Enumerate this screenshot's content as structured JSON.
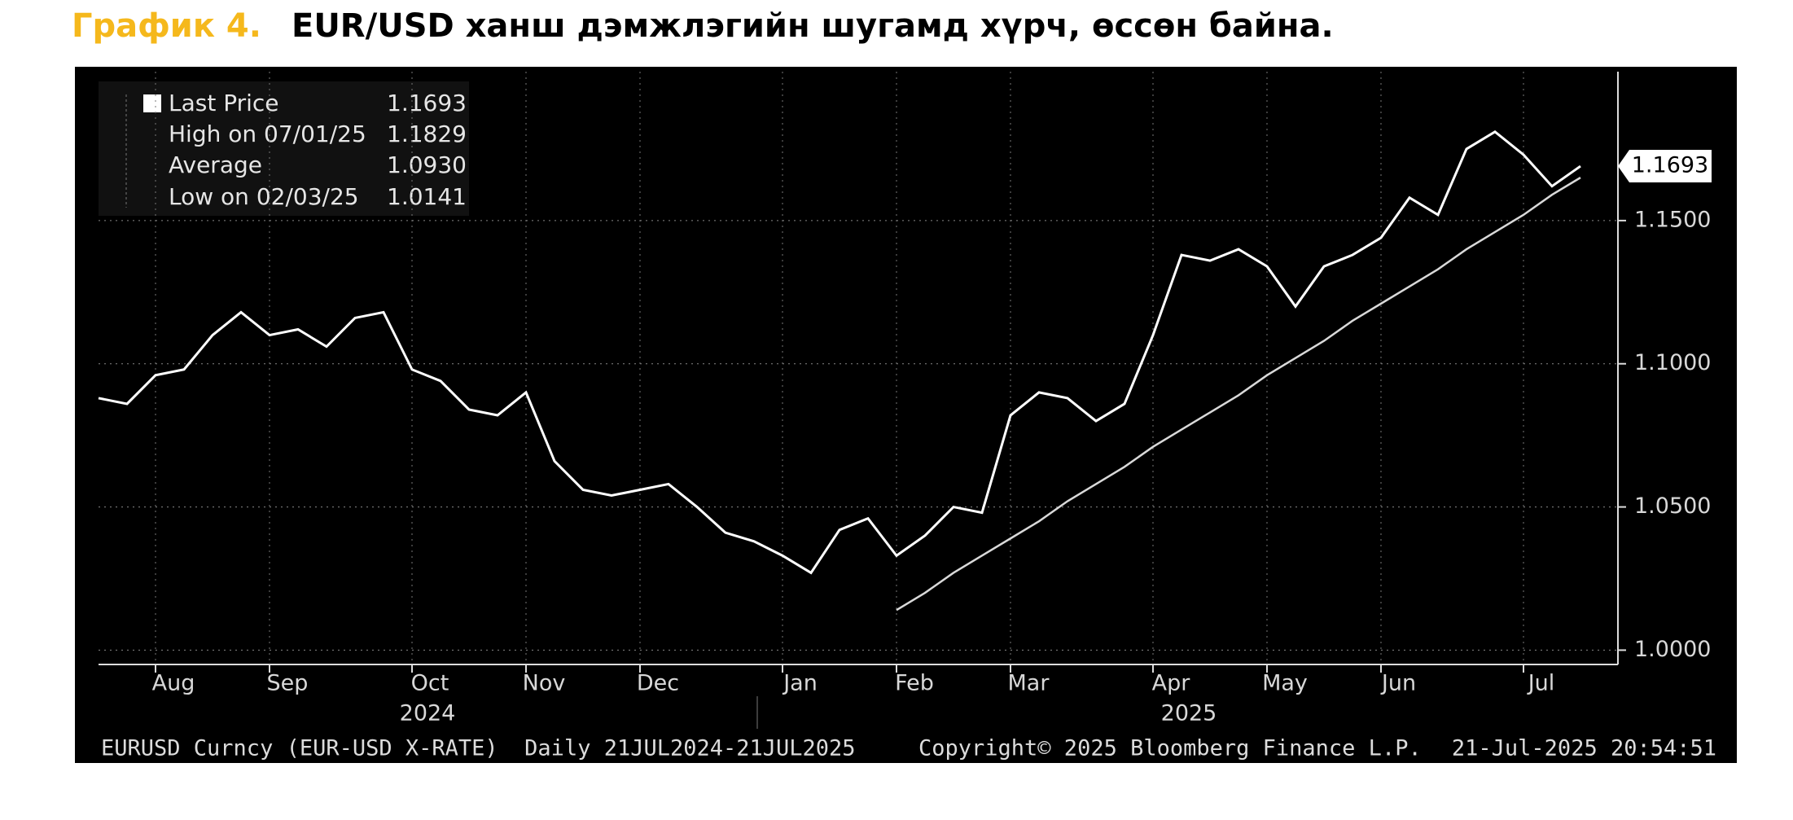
{
  "title_prefix": "График 4.",
  "title": "EUR/USD ханш дэмжлэгийн шугамд хүрч, өссөн байна.",
  "chart_data": {
    "type": "line",
    "categories": [
      null,
      null,
      "Aug",
      null,
      null,
      null,
      "Sep",
      null,
      null,
      null,
      null,
      "Oct",
      null,
      null,
      null,
      "Nov",
      null,
      null,
      null,
      "Dec",
      null,
      null,
      null,
      null,
      "Jan",
      null,
      null,
      null,
      "Feb",
      null,
      null,
      null,
      "Mar",
      null,
      null,
      null,
      null,
      "Apr",
      null,
      null,
      null,
      "May",
      null,
      null,
      null,
      "Jun",
      null,
      null,
      null,
      null,
      "Jul",
      null,
      null
    ],
    "series": [
      {
        "name": "Last Price",
        "color": "#ffffff",
        "values": [
          1.088,
          1.086,
          1.096,
          1.098,
          1.11,
          1.118,
          1.11,
          1.112,
          1.106,
          1.116,
          1.118,
          1.098,
          1.094,
          1.084,
          1.082,
          1.09,
          1.066,
          1.056,
          1.054,
          1.056,
          1.058,
          1.05,
          1.041,
          1.038,
          1.033,
          1.027,
          1.042,
          1.046,
          1.033,
          1.04,
          1.05,
          1.048,
          1.082,
          1.09,
          1.088,
          1.08,
          1.086,
          1.11,
          1.138,
          1.136,
          1.14,
          1.134,
          1.12,
          1.134,
          1.138,
          1.144,
          1.158,
          1.152,
          1.175,
          1.181,
          1.173,
          1.162,
          1.169
        ]
      }
    ],
    "trendline": {
      "color": "#d9d9d9",
      "values": [
        null,
        null,
        null,
        null,
        null,
        null,
        null,
        null,
        null,
        null,
        null,
        null,
        null,
        null,
        null,
        null,
        null,
        null,
        null,
        null,
        null,
        null,
        null,
        null,
        null,
        null,
        null,
        null,
        1.014,
        1.02,
        1.027,
        1.033,
        1.039,
        1.045,
        1.052,
        1.058,
        1.064,
        1.071,
        1.077,
        1.083,
        1.089,
        1.096,
        1.102,
        1.108,
        1.115,
        1.121,
        1.127,
        1.133,
        1.14,
        1.146,
        1.152,
        1.159,
        1.165
      ]
    },
    "year_labels": [
      "2024",
      "2025"
    ],
    "legend_stats": [
      {
        "value": "1.1693"
      },
      {
        "name": "High on 07/01/25",
        "value": "1.1829"
      },
      {
        "name": "Average",
        "value": "1.0930"
      },
      {
        "name": "Low on 02/03/25",
        "value": "1.0141"
      }
    ],
    "ylim": [
      0.995,
      1.202
    ],
    "yticks": [
      {
        "value": 1.0,
        "label": "1.0000"
      },
      {
        "value": 1.05,
        "label": "1.0500"
      },
      {
        "value": 1.1,
        "label": "1.1000"
      },
      {
        "value": 1.15,
        "label": "1.1500"
      }
    ],
    "grid": true,
    "footer": {
      "left": "EURUSD Curncy (EUR-USD X-RATE)  Daily 21JUL2024-21JUL2025",
      "center": "Copyright© 2025 Bloomberg Finance L.P.",
      "right": "21-Jul-2025 20:54:51"
    }
  }
}
